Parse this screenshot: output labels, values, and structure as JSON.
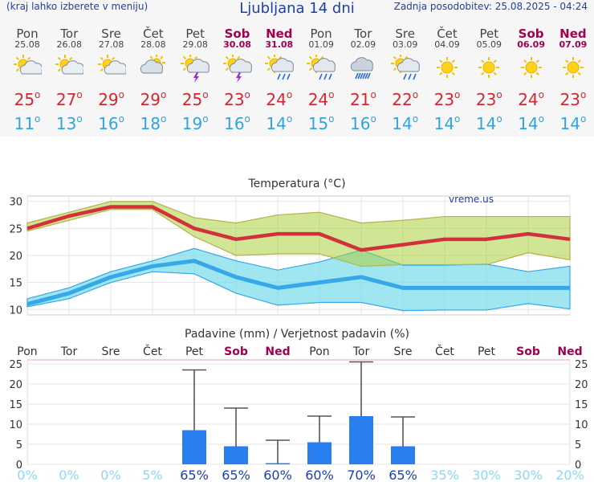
{
  "header": {
    "left_note": "(kraj lahko izberete v meniju)",
    "title": "Ljubljana 14 dni",
    "updated": "Zadnja posodobitev: 25.08.2025 - 04:24"
  },
  "days": [
    {
      "name": "Pon",
      "date": "25.08",
      "weekend": false,
      "icon": "sun-cloud-icon",
      "tmax": "25",
      "tmin": "11"
    },
    {
      "name": "Tor",
      "date": "26.08",
      "weekend": false,
      "icon": "sun-cloud-icon",
      "tmax": "27",
      "tmin": "13"
    },
    {
      "name": "Sre",
      "date": "27.08",
      "weekend": false,
      "icon": "sun-cloud-icon",
      "tmax": "29",
      "tmin": "16"
    },
    {
      "name": "Čet",
      "date": "28.08",
      "weekend": false,
      "icon": "cloudy-sun-icon",
      "tmax": "29",
      "tmin": "18"
    },
    {
      "name": "Pet",
      "date": "29.08",
      "weekend": false,
      "icon": "thunderstorm-icon",
      "tmax": "25",
      "tmin": "19"
    },
    {
      "name": "Sob",
      "date": "30.08",
      "weekend": true,
      "icon": "thunderstorm-icon",
      "tmax": "23",
      "tmin": "16"
    },
    {
      "name": "Ned",
      "date": "31.08",
      "weekend": true,
      "icon": "sun-rain-icon",
      "tmax": "24",
      "tmin": "14"
    },
    {
      "name": "Pon",
      "date": "01.09",
      "weekend": false,
      "icon": "sun-rain-icon",
      "tmax": "24",
      "tmin": "15"
    },
    {
      "name": "Tor",
      "date": "02.09",
      "weekend": false,
      "icon": "rain-cloud-icon",
      "tmax": "21",
      "tmin": "16"
    },
    {
      "name": "Sre",
      "date": "03.09",
      "weekend": false,
      "icon": "sun-rain-icon",
      "tmax": "22",
      "tmin": "14"
    },
    {
      "name": "Čet",
      "date": "04.09",
      "weekend": false,
      "icon": "sun-icon",
      "tmax": "23",
      "tmin": "14"
    },
    {
      "name": "Pet",
      "date": "05.09",
      "weekend": false,
      "icon": "sun-icon",
      "tmax": "23",
      "tmin": "14"
    },
    {
      "name": "Sob",
      "date": "06.09",
      "weekend": true,
      "icon": "sun-icon",
      "tmax": "24",
      "tmin": "14"
    },
    {
      "name": "Ned",
      "date": "07.09",
      "weekend": true,
      "icon": "sun-icon",
      "tmax": "23",
      "tmin": "14"
    }
  ],
  "chart_data": [
    {
      "type": "area",
      "title": "Temperatura (°C)",
      "watermark": "vreme.us",
      "ylim": [
        9,
        31
      ],
      "yticks": [
        10,
        15,
        20,
        25,
        30
      ],
      "grid": true,
      "series": [
        {
          "values": [
            25,
            27.3,
            29,
            29,
            25,
            23,
            24,
            24,
            21,
            22,
            23,
            23,
            24,
            23
          ],
          "color": "#d2303a"
        },
        {
          "values": [
            26,
            28,
            30,
            30,
            27,
            26,
            27.5,
            28,
            26,
            26.5,
            27.2,
            27.2,
            27.2,
            27.2
          ],
          "color": "#c8c860"
        },
        {
          "values": [
            24.5,
            26.5,
            28.5,
            28.5,
            23.5,
            20,
            20.3,
            20.3,
            18,
            18.3,
            18.3,
            18.3,
            20.5,
            19.2
          ],
          "color": "#c8c860"
        },
        {
          "values": [
            11,
            13,
            16,
            18,
            19,
            16,
            14,
            15,
            16,
            14,
            14,
            14,
            14,
            14
          ],
          "color": "#36a7e8"
        },
        {
          "values": [
            12,
            14,
            17,
            19,
            21.3,
            19,
            17.3,
            18.8,
            21,
            18.2,
            18.2,
            18.4,
            17,
            18
          ],
          "color": "#36a7e8"
        },
        {
          "values": [
            10.5,
            12,
            15,
            17,
            16.6,
            13,
            10.8,
            11.3,
            11.3,
            9.8,
            9.9,
            9.9,
            11.1,
            10.1
          ],
          "color": "#36a7e8"
        }
      ]
    },
    {
      "type": "bar",
      "title": "Padavine (mm) / Verjetnost padavin (%)",
      "categories": [
        "Pon",
        "Tor",
        "Sre",
        "Čet",
        "Pet",
        "Sob",
        "Ned",
        "Pon",
        "Tor",
        "Sre",
        "Čet",
        "Pet",
        "Sob",
        "Ned"
      ],
      "weekend": [
        false,
        false,
        false,
        false,
        false,
        true,
        true,
        false,
        false,
        false,
        false,
        false,
        true,
        true
      ],
      "values": [
        0,
        0,
        0,
        0,
        8.5,
        4.5,
        0.3,
        5.5,
        12,
        4.5,
        0,
        0,
        0,
        0
      ],
      "max_values": [
        0,
        0,
        0,
        0,
        23.5,
        14,
        6,
        12,
        25.5,
        11.8,
        0,
        0,
        0,
        0
      ],
      "probability": [
        "0%",
        "0%",
        "0%",
        "5%",
        "65%",
        "65%",
        "60%",
        "60%",
        "70%",
        "65%",
        "35%",
        "30%",
        "30%",
        "20%"
      ],
      "ylim": [
        0,
        26
      ],
      "yticks": [
        0,
        5,
        10,
        15,
        20,
        25
      ],
      "colors": {
        "bar": "#2a7ff0",
        "whisker": "#555555",
        "prob_high": "#1f3fa8",
        "prob_low": "#8fd6f2"
      }
    }
  ]
}
